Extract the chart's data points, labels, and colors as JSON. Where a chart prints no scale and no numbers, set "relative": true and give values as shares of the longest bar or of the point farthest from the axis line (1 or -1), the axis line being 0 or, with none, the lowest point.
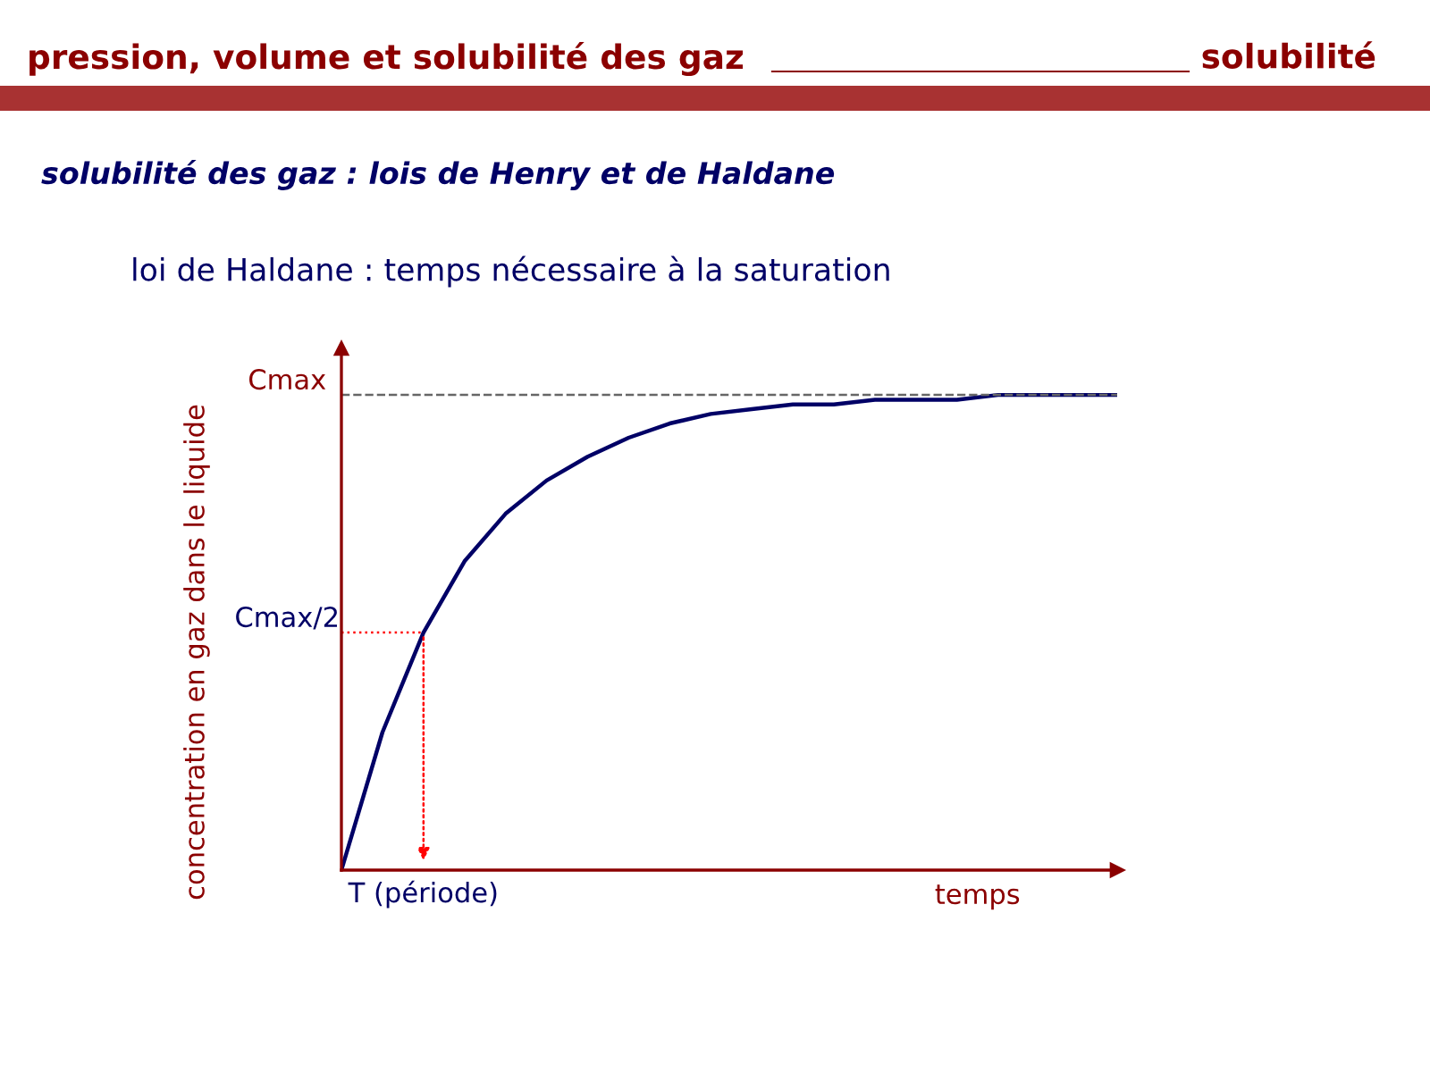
{
  "chart_data": {
    "type": "line",
    "relative": true,
    "title": "pression, volume et solubilité des gaz",
    "subtitle": "loi de Haldane : temps nécessaire à la saturation",
    "annotations": [
      "solubilité",
      "solubilité des gaz : lois de Henry et de Haldane",
      "concentration en gaz dans le liquide",
      "T (période)"
    ],
    "xlabel": "temps",
    "categories": [
      null,
      null,
      null,
      null,
      null,
      null,
      null,
      null,
      null,
      null,
      null,
      null,
      null,
      null,
      null,
      null,
      null,
      null,
      null,
      null
    ],
    "series": [
      {
        "color": "#000066",
        "values": [
          0,
          0.29,
          0.5,
          0.65,
          0.75,
          0.82,
          0.87,
          0.91,
          0.94,
          0.96,
          0.97,
          0.98,
          0.98,
          0.99,
          0.99,
          0.99,
          1,
          1,
          1,
          1
        ]
      }
    ],
    "ref_lines": [
      {
        "axis": "y",
        "value": 1,
        "label": "Cmax",
        "color": "#666666",
        "line_style": "dashed"
      },
      {
        "axis": "y",
        "value": 0.5,
        "label": "Cmax/2",
        "color": "#ff0000",
        "line_style": "dotted"
      }
    ],
    "legend": false,
    "marker": "none",
    "line_style": "solid"
  }
}
